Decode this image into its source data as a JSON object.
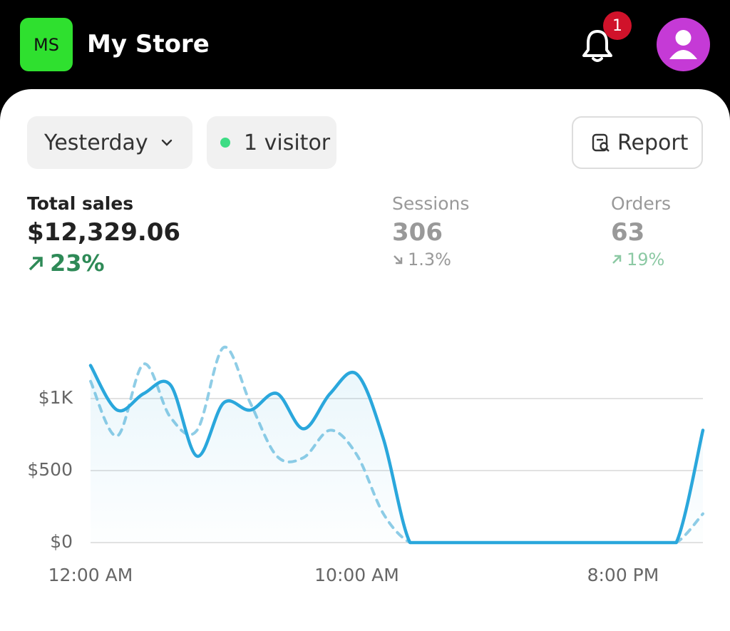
{
  "header": {
    "logo": "MS",
    "title": "My Store",
    "badge": "1"
  },
  "filters": {
    "period": "Yesterday",
    "visitors": "1 visitor",
    "report": "Report"
  },
  "metrics": [
    {
      "label": "Total sales",
      "value": "$12,329.06",
      "change": "23%"
    },
    {
      "label": "Sessions",
      "value": "306",
      "change": "1.3%"
    },
    {
      "label": "Orders",
      "value": "63",
      "change": "19%"
    }
  ],
  "chart_data": {
    "type": "line",
    "categories": [
      "12:00 AM",
      null,
      null,
      null,
      null,
      null,
      null,
      null,
      null,
      null,
      "10:00 AM",
      null,
      null,
      null,
      null,
      null,
      null,
      null,
      null,
      null,
      "8:00 PM",
      null,
      null,
      null
    ],
    "series": [
      {
        "color": "#2aa7dc",
        "dashed": false,
        "fill": true,
        "values": [
          1230,
          920,
          1035,
          1095,
          600,
          970,
          920,
          1035,
          790,
          1035,
          1170,
          720,
          0,
          0,
          0,
          0,
          0,
          0,
          0,
          0,
          0,
          0,
          0,
          780
        ]
      },
      {
        "color": "#8fcde6",
        "dashed": true,
        "fill": false,
        "values": [
          1120,
          740,
          1240,
          870,
          780,
          1355,
          970,
          600,
          590,
          780,
          610,
          200,
          0,
          0,
          0,
          0,
          0,
          0,
          0,
          0,
          0,
          0,
          0,
          200
        ]
      }
    ],
    "ylim": [
      0,
      1500
    ],
    "yticks": [
      {
        "value": 0,
        "label": "$0"
      },
      {
        "value": 500,
        "label": "$500"
      },
      {
        "value": 1000,
        "label": "$1K"
      }
    ],
    "grid": true
  }
}
